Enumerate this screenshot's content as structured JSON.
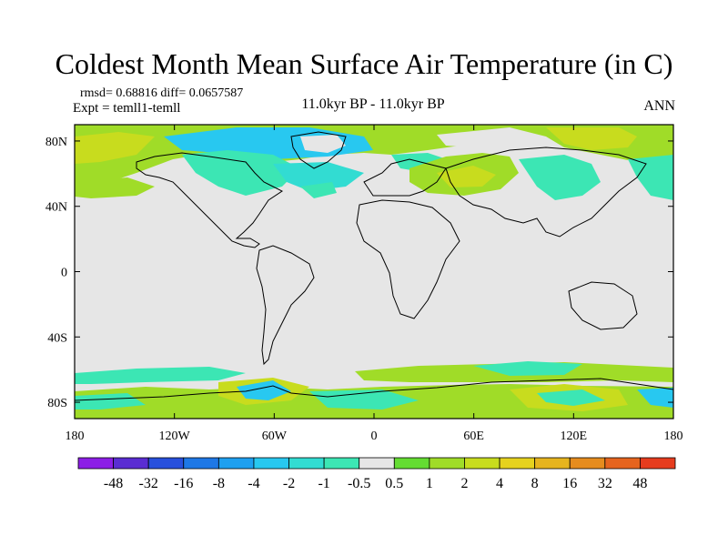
{
  "title": "Coldest Month Mean Surface Air Temperature (in C)",
  "stats": "rmsd= 0.68816 diff= 0.0657587",
  "experiment": "Expt = temll1-temll",
  "period": "11.0kyr BP - 11.0kyr BP",
  "season": "ANN",
  "map": {
    "background_color": "#e6e6e6",
    "lat_ticks": [
      {
        "value": 80,
        "label": "80N"
      },
      {
        "value": 40,
        "label": "40N"
      },
      {
        "value": 0,
        "label": "0"
      },
      {
        "value": -40,
        "label": "40S"
      },
      {
        "value": -80,
        "label": "80S"
      }
    ],
    "lon_ticks": [
      {
        "value": -180,
        "label": "180"
      },
      {
        "value": -120,
        "label": "120W"
      },
      {
        "value": -60,
        "label": "60W"
      },
      {
        "value": 0,
        "label": "0"
      },
      {
        "value": 60,
        "label": "60E"
      },
      {
        "value": 120,
        "label": "120E"
      },
      {
        "value": 180,
        "label": "180"
      }
    ]
  },
  "colorbar": {
    "colors": [
      "#8c1ee6",
      "#5a2dd2",
      "#2850dc",
      "#1e78e6",
      "#1ea0f0",
      "#28c8f0",
      "#32dcd2",
      "#3ce6b4",
      "#e6e6e6",
      "#64dc32",
      "#a0dc28",
      "#c8dc1e",
      "#e6d21e",
      "#e6b41e",
      "#e68c1e",
      "#e6641e",
      "#e63c1e"
    ],
    "labels": [
      "-48",
      "-32",
      "-16",
      "-8",
      "-4",
      "-2",
      "-1",
      "-0.5",
      "0.5",
      "1",
      "2",
      "4",
      "8",
      "16",
      "32",
      "48"
    ]
  }
}
